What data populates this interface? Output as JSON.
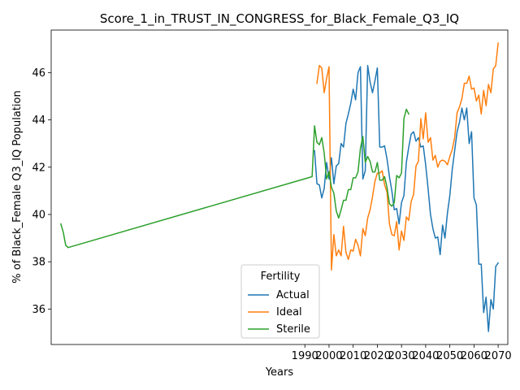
{
  "chart_data": {
    "type": "line",
    "title": "Score_1_in_TRUST_IN_CONGRESS_for_Black_Female_Q3_IQ",
    "xlabel": "Years",
    "ylabel": "% of Black_Female Q3_IQ Population",
    "xlim": [
      1885,
      2074
    ],
    "ylim": [
      34.5,
      47.8
    ],
    "xticks": [
      1990,
      2000,
      2010,
      2020,
      2030,
      2040,
      2050,
      2060,
      2070
    ],
    "yticks": [
      36,
      38,
      40,
      42,
      44,
      46
    ],
    "legend": {
      "title": "Fertility",
      "placement": "bottom-center"
    },
    "series": [
      {
        "name": "Actual",
        "color": "#1f77b4",
        "x": [
          1994,
          1995,
          1996,
          1997,
          1998,
          1999,
          2000,
          2001,
          2002,
          2003,
          2004,
          2005,
          2006,
          2007,
          2008,
          2009,
          2010,
          2011,
          2012,
          2013,
          2014,
          2015,
          2016,
          2017,
          2018,
          2019,
          2020,
          2021,
          2022,
          2023,
          2024,
          2025,
          2026,
          2027,
          2028,
          2029,
          2030,
          2031,
          2032,
          2033,
          2034,
          2035,
          2036,
          2037,
          2038,
          2039,
          2040,
          2041,
          2042,
          2043,
          2044,
          2045,
          2046,
          2047,
          2048,
          2049,
          2050,
          2051,
          2052,
          2053,
          2054,
          2055,
          2056,
          2057,
          2058,
          2059,
          2060,
          2061,
          2062,
          2063,
          2064,
          2065,
          2066,
          2067,
          2068,
          2069,
          2070
        ],
        "values": [
          42.7,
          41.3,
          41.25,
          40.7,
          41.1,
          42.2,
          41.5,
          42.4,
          41.3,
          42.05,
          42.15,
          43.0,
          42.85,
          43.85,
          44.25,
          44.7,
          45.3,
          44.85,
          46.0,
          46.25,
          41.5,
          41.85,
          46.3,
          45.6,
          45.15,
          45.65,
          46.2,
          42.85,
          42.85,
          42.9,
          42.35,
          41.6,
          41.0,
          40.2,
          40.25,
          39.6,
          40.5,
          40.8,
          42.2,
          42.85,
          43.4,
          43.5,
          43.1,
          43.25,
          42.85,
          42.9,
          42.1,
          41.1,
          40.0,
          39.4,
          39.0,
          39.05,
          38.3,
          39.55,
          39.0,
          40.05,
          40.8,
          41.9,
          42.7,
          43.5,
          43.9,
          44.5,
          44.0,
          44.5,
          43.0,
          43.5,
          40.7,
          40.4,
          37.9,
          37.9,
          35.85,
          36.5,
          35.05,
          36.4,
          36.0,
          37.8,
          37.95
        ]
      },
      {
        "name": "Ideal",
        "color": "#ff7f0e",
        "x": [
          1995,
          1996,
          1997,
          1998,
          1999,
          2000,
          2001,
          2002,
          2003,
          2004,
          2005,
          2006,
          2007,
          2008,
          2009,
          2010,
          2011,
          2012,
          2013,
          2014,
          2015,
          2016,
          2017,
          2018,
          2019,
          2020,
          2021,
          2022,
          2023,
          2024,
          2025,
          2026,
          2027,
          2028,
          2029,
          2030,
          2031,
          2032,
          2033,
          2034,
          2035,
          2036,
          2037,
          2038,
          2039,
          2040,
          2041,
          2042,
          2043,
          2044,
          2045,
          2046,
          2047,
          2048,
          2049,
          2050,
          2051,
          2052,
          2053,
          2054,
          2055,
          2056,
          2057,
          2058,
          2059,
          2060,
          2061,
          2062,
          2063,
          2064,
          2065,
          2066,
          2067,
          2068,
          2069,
          2070
        ],
        "values": [
          45.55,
          46.3,
          46.2,
          45.15,
          45.75,
          46.25,
          37.65,
          39.15,
          38.25,
          38.5,
          38.25,
          39.5,
          38.4,
          38.1,
          38.5,
          38.45,
          38.95,
          38.7,
          38.25,
          39.4,
          39.1,
          39.85,
          40.2,
          40.75,
          41.4,
          41.75,
          41.75,
          41.85,
          41.25,
          40.95,
          39.6,
          39.15,
          39.1,
          39.7,
          38.5,
          39.3,
          38.9,
          39.9,
          39.75,
          40.55,
          40.85,
          42.05,
          42.25,
          44.05,
          43.2,
          44.3,
          43.05,
          43.25,
          42.3,
          42.5,
          42.0,
          42.25,
          42.3,
          42.25,
          42.1,
          42.45,
          42.75,
          43.25,
          44.3,
          44.55,
          44.9,
          45.55,
          45.55,
          45.85,
          45.3,
          45.35,
          44.8,
          45.05,
          44.25,
          45.25,
          44.6,
          45.5,
          45.15,
          46.15,
          46.3,
          47.25
        ]
      },
      {
        "name": "Sterile",
        "color": "#2ca02c",
        "x": [
          1889,
          1890,
          1891,
          1892,
          1993,
          1994,
          1995,
          1996,
          1997,
          1998,
          1999,
          2000,
          2001,
          2002,
          2003,
          2004,
          2005,
          2006,
          2007,
          2008,
          2009,
          2010,
          2011,
          2012,
          2013,
          2014,
          2015,
          2016,
          2017,
          2018,
          2019,
          2020,
          2021,
          2022,
          2023,
          2024,
          2025,
          2026,
          2027,
          2028,
          2029,
          2030,
          2031,
          2032,
          2033
        ],
        "values": [
          39.6,
          39.25,
          38.7,
          38.6,
          41.6,
          43.75,
          43.05,
          42.95,
          43.25,
          42.6,
          41.5,
          41.8,
          41.15,
          40.9,
          40.15,
          39.85,
          40.2,
          40.6,
          40.6,
          41.05,
          41.05,
          41.55,
          41.55,
          41.8,
          42.8,
          43.3,
          42.2,
          42.45,
          42.25,
          41.8,
          41.8,
          42.2,
          41.45,
          41.45,
          41.6,
          41.15,
          40.45,
          40.35,
          40.5,
          41.65,
          41.55,
          41.75,
          44.05,
          44.45,
          44.25
        ]
      }
    ]
  }
}
